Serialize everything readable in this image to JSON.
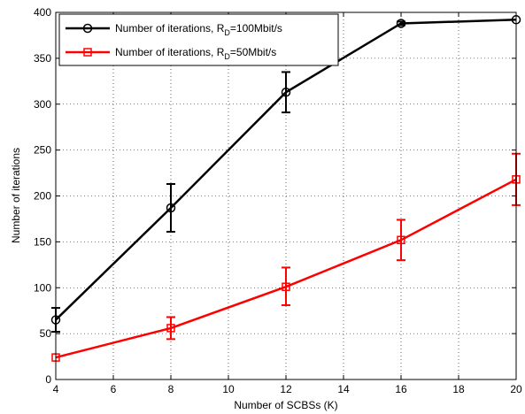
{
  "chart_data": {
    "type": "line",
    "title": "",
    "xlabel": "Number of SCBSs (K)",
    "ylabel": "Number of iterations",
    "x": [
      4,
      8,
      12,
      16,
      20
    ],
    "xlim": [
      4,
      20
    ],
    "ylim": [
      0,
      400
    ],
    "xticks": [
      4,
      6,
      8,
      10,
      12,
      14,
      16,
      18,
      20
    ],
    "yticks": [
      0,
      50,
      100,
      150,
      200,
      250,
      300,
      350,
      400
    ],
    "grid": true,
    "grid_style": "dotted",
    "legend_position": "top-left",
    "series": [
      {
        "name": "Number of iterations, R_D=100Mbit/s",
        "legend_main": "Number of iterations, R",
        "legend_sub": "D",
        "legend_tail": "=100Mbit/s",
        "color": "#000000",
        "marker": "circle",
        "values": [
          65,
          187,
          313,
          388,
          392
        ],
        "err_low": [
          52,
          161,
          291,
          386,
          392
        ],
        "err_high": [
          78,
          213,
          335,
          390,
          392
        ]
      },
      {
        "name": "Number of iterations, R_D=50Mbit/s",
        "legend_main": "Number of iterations, R",
        "legend_sub": "D",
        "legend_tail": "=50Mbit/s",
        "color": "#ff0000",
        "marker": "square",
        "values": [
          24,
          56,
          101,
          152,
          218
        ],
        "err_low": [
          24,
          44,
          81,
          130,
          190
        ],
        "err_high": [
          24,
          68,
          122,
          174,
          246
        ]
      }
    ]
  }
}
